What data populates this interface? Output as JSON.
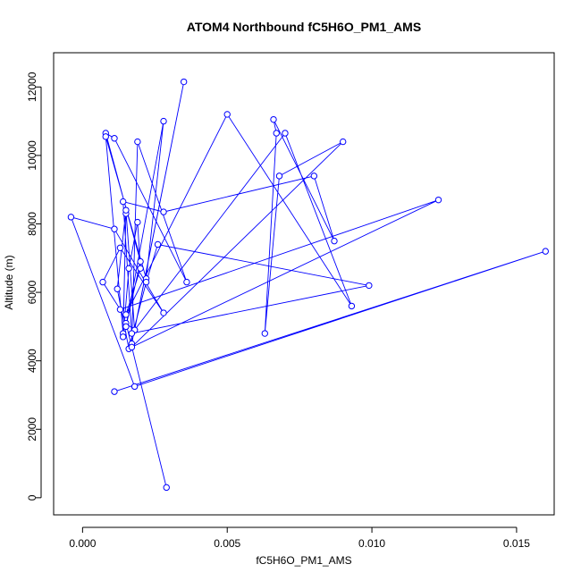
{
  "chart_data": {
    "type": "line",
    "title": "ATOM4 Northbound fC5H6O_PM1_AMS",
    "xlabel": "fC5H6O_PM1_AMS",
    "ylabel": "Altitude (m)",
    "xlim": [
      -0.001,
      0.0163
    ],
    "ylim": [
      -500,
      13000
    ],
    "xticks": [
      0.0,
      0.005,
      0.01,
      0.015
    ],
    "xtick_labels": [
      "0.000",
      "0.005",
      "0.010",
      "0.015"
    ],
    "yticks": [
      0,
      2000,
      4000,
      6000,
      8000,
      10000,
      12000
    ],
    "ytick_labels": [
      "0",
      "2000",
      "4000",
      "6000",
      "8000",
      "10000",
      "12000"
    ],
    "grid": false,
    "marker": "open-circle",
    "series_color": "#0000ff",
    "series": [
      {
        "x": [
          0.0029,
          0.0015,
          0.0018,
          0.0035,
          0.0017,
          0.0019,
          0.0036,
          0.0011,
          0.0008,
          0.002,
          0.0015,
          0.0028,
          0.0022,
          0.0008,
          0.0014,
          0.0015,
          0.0014,
          0.0016,
          0.0019,
          0.002,
          0.0015,
          0.005,
          0.0093,
          0.007,
          0.0018,
          0.0015,
          0.0012,
          0.0016,
          0.0022,
          0.0026,
          0.0099,
          0.0017,
          0.0014,
          0.0028,
          0.008,
          0.0087,
          0.0066,
          0.0067,
          0.0063,
          0.0068,
          0.009,
          0.0017,
          0.0123,
          0.0013,
          0.0007,
          0.0013,
          0.0028,
          0.0011,
          -0.0004,
          0.0018,
          0.016,
          0.0011
        ],
        "y": [
          300,
          5100,
          4900,
          12150,
          4500,
          10400,
          6300,
          10500,
          10650,
          6900,
          5000,
          11000,
          6400,
          10550,
          4800,
          8300,
          4700,
          6700,
          8050,
          6700,
          5350,
          11200,
          5600,
          10650,
          4900,
          8400,
          6100,
          4350,
          6300,
          7400,
          6200,
          4800,
          8650,
          8350,
          9400,
          7500,
          11050,
          10650,
          4800,
          9400,
          10400,
          4400,
          8700,
          5500,
          6300,
          7300,
          5400,
          7850,
          8200,
          3250,
          7200,
          3100
        ]
      }
    ]
  }
}
